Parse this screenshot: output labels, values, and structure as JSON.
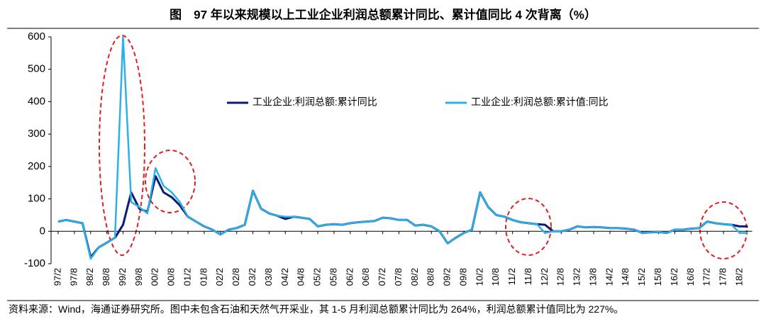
{
  "chart_data": {
    "type": "line",
    "title": "图　97 年以来规模以上工业企业利润总额累计同比、累计值同比 4 次背离（%）",
    "note": "资料来源：Wind，海通证券研究所。图中未包含石油和天然气开采业，其 1-5 月利润总额累计同比为 264%，利润总额累计值同比为 227%。",
    "categories": [
      "97/2",
      null,
      "97/8",
      null,
      "98/2",
      null,
      "98/8",
      null,
      "99/2",
      null,
      "99/8",
      null,
      "00/2",
      null,
      "00/8",
      null,
      "01/2",
      null,
      "01/8",
      null,
      "02/2",
      null,
      "02/8",
      null,
      "03/2",
      null,
      "03/8",
      null,
      "04/2",
      null,
      "04/8",
      null,
      "05/2",
      null,
      "05/8",
      null,
      "06/2",
      null,
      "06/8",
      null,
      "07/2",
      null,
      "07/8",
      null,
      "08/2",
      null,
      "08/8",
      null,
      "09/2",
      null,
      "09/8",
      null,
      "10/2",
      null,
      "10/8",
      null,
      "11/2",
      null,
      "11/8",
      null,
      "12/2",
      null,
      "12/8",
      null,
      "13/2",
      null,
      "13/8",
      null,
      "14/2",
      null,
      "14/8",
      null,
      "15/2",
      null,
      "15/8",
      null,
      "16/2",
      null,
      "16/8",
      null,
      "17/2",
      null,
      "17/8",
      null,
      "18/2",
      null
    ],
    "series": [
      {
        "name": "工业企业:利润总额:累计同比",
        "color": "#0b1a72",
        "values": [
          30,
          35,
          30,
          25,
          -80,
          -50,
          -35,
          -20,
          20,
          120,
          70,
          60,
          170,
          120,
          105,
          80,
          45,
          30,
          15,
          5,
          -10,
          5,
          10,
          20,
          125,
          70,
          55,
          48,
          38,
          45,
          42,
          38,
          15,
          20,
          22,
          20,
          25,
          28,
          30,
          32,
          42,
          40,
          35,
          35,
          18,
          20,
          15,
          0,
          -37,
          -20,
          -5,
          5,
          120,
          75,
          50,
          45,
          35,
          28,
          25,
          22,
          20,
          0,
          0,
          5,
          15,
          12,
          13,
          12,
          10,
          10,
          8,
          5,
          -5,
          -3,
          -2,
          -5,
          5,
          5,
          8,
          10,
          30,
          25,
          22,
          20,
          15,
          15
        ]
      },
      {
        "name": "工业企业:利润总额:累计值:同比",
        "color": "#2bb0e8",
        "values": [
          30,
          35,
          30,
          25,
          -85,
          -50,
          -35,
          -20,
          600,
          90,
          75,
          55,
          195,
          140,
          120,
          90,
          45,
          30,
          15,
          5,
          -10,
          5,
          10,
          20,
          125,
          70,
          55,
          48,
          45,
          45,
          42,
          38,
          15,
          20,
          22,
          20,
          25,
          28,
          30,
          32,
          42,
          40,
          35,
          35,
          18,
          20,
          15,
          0,
          -37,
          -20,
          -5,
          5,
          120,
          75,
          50,
          45,
          35,
          28,
          25,
          22,
          -5,
          0,
          0,
          5,
          15,
          12,
          13,
          12,
          10,
          10,
          8,
          5,
          -5,
          -3,
          -2,
          -5,
          5,
          5,
          8,
          10,
          30,
          25,
          22,
          20,
          -5,
          -5
        ]
      }
    ],
    "ylim": [
      -100,
      600
    ],
    "yticks": [
      -100,
      0,
      100,
      200,
      300,
      400,
      500,
      600
    ],
    "grid": false
  }
}
